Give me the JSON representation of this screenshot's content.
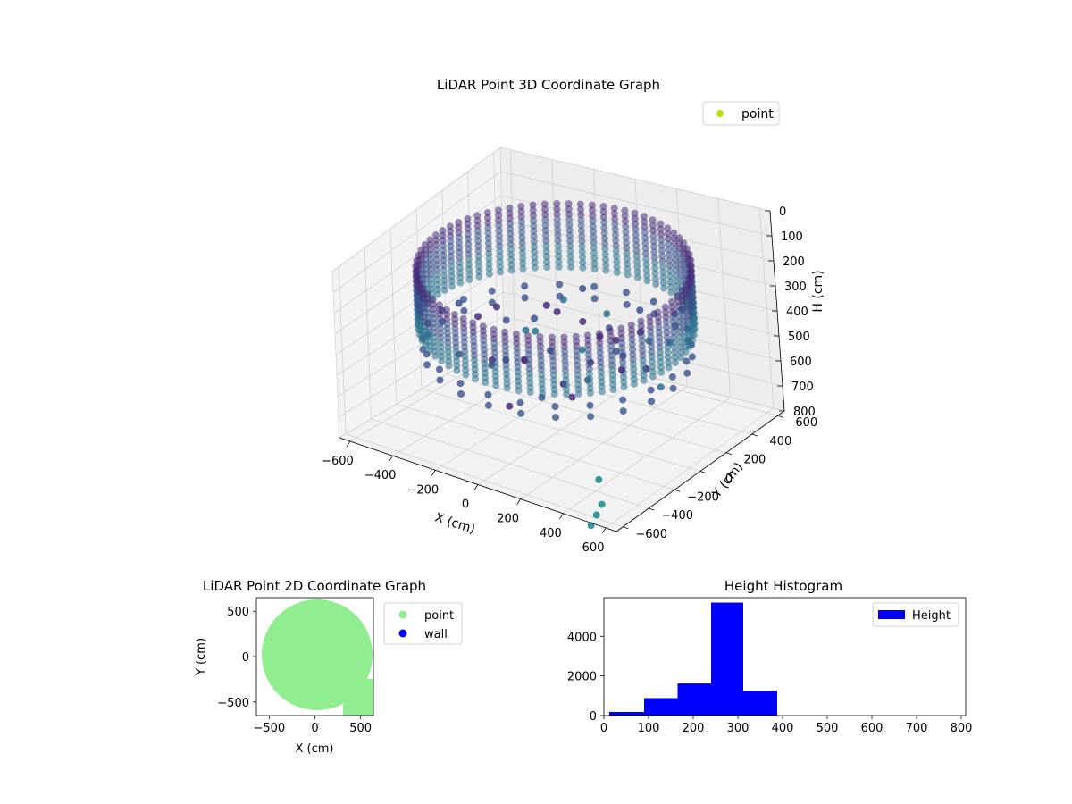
{
  "chart_data": [
    {
      "type": "scatter3d",
      "title": "LiDAR Point 3D Coordinate Graph",
      "xlabel": "X (cm)",
      "ylabel": "Y (cm)",
      "zlabel": "H (cm)",
      "x_ticks": [
        -600,
        -400,
        -200,
        0,
        200,
        400,
        600
      ],
      "y_ticks": [
        -600,
        -400,
        -200,
        0,
        200,
        400,
        600
      ],
      "z_ticks": [
        0,
        100,
        200,
        300,
        400,
        500,
        600,
        700,
        800
      ],
      "xlim": [
        -650,
        650
      ],
      "ylim": [
        -650,
        650
      ],
      "zlim": [
        800,
        0
      ],
      "z_inverted": true,
      "grid": true,
      "legend": {
        "entries": [
          {
            "name": "point",
            "color": "#c3dc0f"
          }
        ],
        "placement": "upper-right"
      },
      "colormap": "viridis",
      "description_points": {
        "shape": "ring of radius ~560 cm with vertical column streaks",
        "height_range": [
          100,
          800
        ]
      }
    },
    {
      "type": "scatter",
      "title": "LiDAR Point 2D Coordinate Graph",
      "xlabel": "X (cm)",
      "ylabel": "Y (cm)",
      "x_ticks": [
        -500,
        0,
        500
      ],
      "y_ticks": [
        -500,
        0,
        500
      ],
      "xlim": [
        -640,
        640
      ],
      "ylim": [
        -650,
        650
      ],
      "series": [
        {
          "name": "point",
          "color": "#90ee90",
          "region": "filled disc radius ~600 cm"
        },
        {
          "name": "wall",
          "color": "#0000ff",
          "region": ""
        }
      ],
      "legend_placement": "outside-right"
    },
    {
      "type": "bar",
      "title": "Height Histogram",
      "bins": [
        {
          "start": 12,
          "end": 90,
          "count": 180
        },
        {
          "start": 90,
          "end": 165,
          "count": 880
        },
        {
          "start": 165,
          "end": 240,
          "count": 1620
        },
        {
          "start": 240,
          "end": 312,
          "count": 5700
        },
        {
          "start": 312,
          "end": 388,
          "count": 1250
        },
        {
          "start": 388,
          "end": 465,
          "count": 0
        },
        {
          "start": 465,
          "end": 540,
          "count": 0
        },
        {
          "start": 540,
          "end": 615,
          "count": 0
        },
        {
          "start": 615,
          "end": 690,
          "count": 0
        },
        {
          "start": 690,
          "end": 775,
          "count": 0
        }
      ],
      "x_ticks": [
        0,
        100,
        200,
        300,
        400,
        500,
        600,
        700,
        800
      ],
      "y_ticks": [
        0,
        2000,
        4000
      ],
      "xlim": [
        0,
        810
      ],
      "ylim": [
        0,
        5950
      ],
      "color": "#0000ff",
      "legend": {
        "entries": [
          {
            "name": "Height",
            "color": "#0000ff"
          }
        ],
        "placement": "upper-right"
      }
    }
  ]
}
